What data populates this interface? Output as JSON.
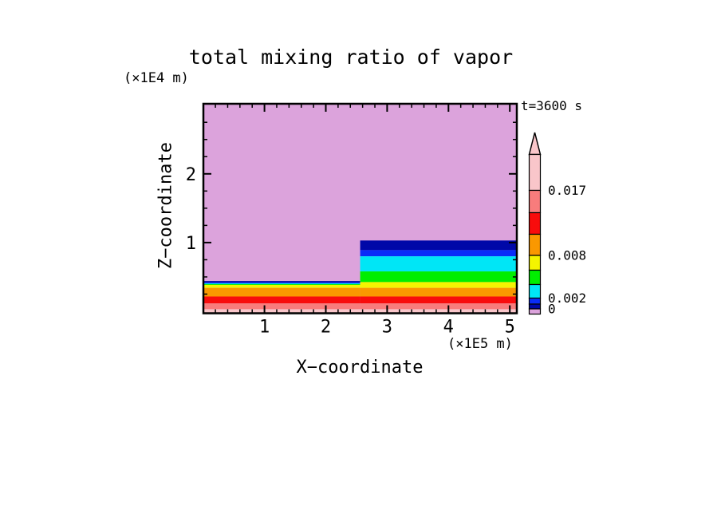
{
  "chart_data": {
    "type": "heatmap",
    "subtype": "filled_contour_cross_section",
    "title": "total mixing ratio of vapor",
    "annotation": "t=3600 s",
    "xlabel": "X−coordinate",
    "x_unit": "(×1E5 m)",
    "ylabel": "Z−coordinate",
    "y_unit": "(×1E4 m)",
    "xlim": [
      0,
      5.11
    ],
    "ylim": [
      0,
      3.05
    ],
    "x_major_ticks": [
      1,
      2,
      3,
      4,
      5
    ],
    "x_minor_step": 0.2,
    "z_major_ticks": [
      1,
      2
    ],
    "z_minor_step": 0.25,
    "grid": false,
    "legend_position": "right-colorbar",
    "colors": {
      "plum": "#DCA3DC",
      "navy": "#0008A8",
      "blue": "#0A2CF8",
      "cyan": "#00E6F6",
      "green": "#00EE00",
      "yellow": "#F4F400",
      "orange": "#FA9800",
      "red": "#F80C0C",
      "salmon": "#F87C7C",
      "lightpink": "#F9C6CA"
    },
    "background_value_color": "plum",
    "step_x": 2.56,
    "bands_left": [
      {
        "color": "navy",
        "z_top": 0.44
      },
      {
        "color": "blue",
        "z_top": 0.42
      },
      {
        "color": "cyan",
        "z_top": 0.407
      },
      {
        "color": "green",
        "z_top": 0.395
      },
      {
        "color": "yellow",
        "z_top": 0.384
      },
      {
        "color": "orange",
        "z_top": 0.34
      },
      {
        "color": "red",
        "z_top": 0.215
      },
      {
        "color": "salmon",
        "z_top": 0.115
      },
      {
        "color": "lightpink",
        "z_top": 0.03
      }
    ],
    "bands_right": [
      {
        "color": "navy",
        "z_top": 1.03
      },
      {
        "color": "blue",
        "z_top": 0.89
      },
      {
        "color": "cyan",
        "z_top": 0.8
      },
      {
        "color": "green",
        "z_top": 0.58
      },
      {
        "color": "yellow",
        "z_top": 0.425
      },
      {
        "color": "orange",
        "z_top": 0.34
      },
      {
        "color": "red",
        "z_top": 0.215
      },
      {
        "color": "salmon",
        "z_top": 0.115
      },
      {
        "color": "lightpink",
        "z_top": 0.03
      }
    ],
    "colorbar": {
      "arrow_color": "lightpink",
      "labels": [
        "0.017",
        "0.008",
        "0.002",
        "0"
      ],
      "segments_top_to_bottom": [
        {
          "color": "lightpink",
          "height": 45,
          "label_at_bottom": "0.017"
        },
        {
          "color": "salmon",
          "height": 28
        },
        {
          "color": "red",
          "height": 27
        },
        {
          "color": "orange",
          "height": 26.5,
          "label_at_bottom": "0.008"
        },
        {
          "color": "yellow",
          "height": 18.5
        },
        {
          "color": "green",
          "height": 18
        },
        {
          "color": "cyan",
          "height": 17,
          "label_at_bottom": "0.002"
        },
        {
          "color": "blue",
          "height": 7.5
        },
        {
          "color": "navy",
          "height": 6,
          "label_at_bottom": "0"
        },
        {
          "color": "plum",
          "height": 6.5
        }
      ]
    }
  }
}
